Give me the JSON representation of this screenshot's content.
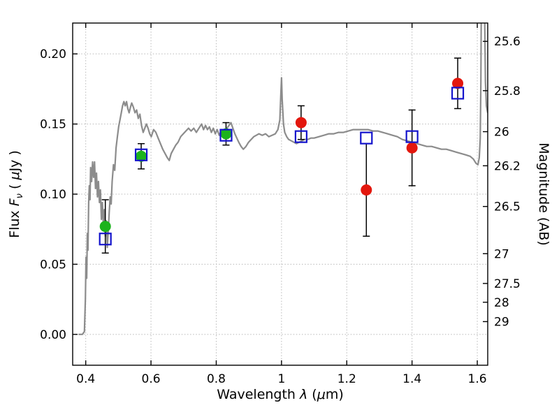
{
  "figure": {
    "background_color": "#ffffff"
  },
  "chart_data": {
    "type": "line+scatter",
    "title": "",
    "xlabel": "Wavelength λ (μm)",
    "ylabel_left": "Flux Fν ( μJy )",
    "ylabel_right": "Magnitude (AB)",
    "xlabel_parts": {
      "pre": "Wavelength  ",
      "sym": "λ",
      "suf": " (",
      "mu": "μ",
      "suf2": "m)"
    },
    "ylabel_left_parts": {
      "pre": "Flux  ",
      "sym": "F",
      "sub": "ν",
      "mid": "  ( ",
      "mu": "μ",
      "suf": "Jy )"
    },
    "xlim": [
      0.36,
      1.632
    ],
    "ylim": [
      -0.022,
      0.222
    ],
    "grid": "dotted",
    "legend": "none",
    "x_ticks": [
      0.4,
      0.6,
      0.8,
      1.0,
      1.2,
      1.4,
      1.6
    ],
    "x_tick_labels": [
      "0.4",
      "0.6",
      "0.8",
      "1",
      "1.2",
      "1.4",
      "1.6"
    ],
    "y_ticks_left": [
      0.0,
      0.05,
      0.1,
      0.15,
      0.2
    ],
    "y_tick_labels_left": [
      "0.00",
      "0.05",
      "0.10",
      "0.15",
      "0.20"
    ],
    "y_ticks_right_mag": [
      25.6,
      25.8,
      26,
      26.2,
      26.5,
      27,
      27.5,
      28,
      29
    ],
    "y_tick_labels_right": [
      "25.6",
      "25.8",
      "26",
      "26.2",
      "26.5",
      "27",
      "27.5",
      "28",
      "29"
    ],
    "ab_zeropoint": 23.9,
    "colors": {
      "spectrum": "#8c8c8c",
      "observed_optical": "#1cb31c",
      "observed_ir": "#e3170d",
      "model_phot": "#1414cc",
      "errorbar": "#000000",
      "axis": "#000000",
      "grid": "#b8b8b8"
    },
    "series": [
      {
        "name": "model-spectrum",
        "type": "line",
        "color_key": "spectrum",
        "points": [
          [
            0.378,
            0.0
          ],
          [
            0.39,
            0.0
          ],
          [
            0.396,
            0.002
          ],
          [
            0.399,
            0.025
          ],
          [
            0.401,
            0.055
          ],
          [
            0.403,
            0.04
          ],
          [
            0.405,
            0.072
          ],
          [
            0.407,
            0.06
          ],
          [
            0.409,
            0.094
          ],
          [
            0.411,
            0.106
          ],
          [
            0.413,
            0.096
          ],
          [
            0.415,
            0.119
          ],
          [
            0.418,
            0.109
          ],
          [
            0.421,
            0.123
          ],
          [
            0.424,
            0.112
          ],
          [
            0.427,
            0.123
          ],
          [
            0.43,
            0.104
          ],
          [
            0.433,
            0.115
          ],
          [
            0.436,
            0.098
          ],
          [
            0.439,
            0.109
          ],
          [
            0.442,
            0.094
          ],
          [
            0.445,
            0.103
          ],
          [
            0.448,
            0.082
          ],
          [
            0.451,
            0.094
          ],
          [
            0.454,
            0.078
          ],
          [
            0.457,
            0.089
          ],
          [
            0.46,
            0.07
          ],
          [
            0.463,
            0.081
          ],
          [
            0.466,
            0.062
          ],
          [
            0.469,
            0.073
          ],
          [
            0.472,
            0.087
          ],
          [
            0.475,
            0.098
          ],
          [
            0.478,
            0.093
          ],
          [
            0.481,
            0.109
          ],
          [
            0.485,
            0.121
          ],
          [
            0.489,
            0.117
          ],
          [
            0.493,
            0.133
          ],
          [
            0.497,
            0.141
          ],
          [
            0.501,
            0.148
          ],
          [
            0.505,
            0.153
          ],
          [
            0.509,
            0.158
          ],
          [
            0.513,
            0.163
          ],
          [
            0.517,
            0.166
          ],
          [
            0.521,
            0.163
          ],
          [
            0.525,
            0.166
          ],
          [
            0.529,
            0.161
          ],
          [
            0.533,
            0.158
          ],
          [
            0.537,
            0.162
          ],
          [
            0.541,
            0.165
          ],
          [
            0.546,
            0.162
          ],
          [
            0.551,
            0.158
          ],
          [
            0.556,
            0.16
          ],
          [
            0.561,
            0.154
          ],
          [
            0.566,
            0.157
          ],
          [
            0.571,
            0.149
          ],
          [
            0.576,
            0.144
          ],
          [
            0.581,
            0.147
          ],
          [
            0.586,
            0.15
          ],
          [
            0.591,
            0.147
          ],
          [
            0.596,
            0.143
          ],
          [
            0.601,
            0.141
          ],
          [
            0.608,
            0.146
          ],
          [
            0.615,
            0.144
          ],
          [
            0.622,
            0.14
          ],
          [
            0.629,
            0.136
          ],
          [
            0.636,
            0.132
          ],
          [
            0.643,
            0.129
          ],
          [
            0.65,
            0.126
          ],
          [
            0.656,
            0.124
          ],
          [
            0.662,
            0.129
          ],
          [
            0.669,
            0.132
          ],
          [
            0.676,
            0.135
          ],
          [
            0.683,
            0.137
          ],
          [
            0.691,
            0.141
          ],
          [
            0.699,
            0.143
          ],
          [
            0.707,
            0.145
          ],
          [
            0.715,
            0.147
          ],
          [
            0.723,
            0.145
          ],
          [
            0.731,
            0.147
          ],
          [
            0.739,
            0.144
          ],
          [
            0.747,
            0.147
          ],
          [
            0.755,
            0.15
          ],
          [
            0.761,
            0.146
          ],
          [
            0.767,
            0.149
          ],
          [
            0.773,
            0.146
          ],
          [
            0.779,
            0.148
          ],
          [
            0.785,
            0.144
          ],
          [
            0.791,
            0.147
          ],
          [
            0.797,
            0.143
          ],
          [
            0.803,
            0.146
          ],
          [
            0.809,
            0.142
          ],
          [
            0.815,
            0.145
          ],
          [
            0.821,
            0.142
          ],
          [
            0.827,
            0.145
          ],
          [
            0.833,
            0.147
          ],
          [
            0.839,
            0.149
          ],
          [
            0.845,
            0.151
          ],
          [
            0.851,
            0.147
          ],
          [
            0.857,
            0.143
          ],
          [
            0.863,
            0.14
          ],
          [
            0.869,
            0.137
          ],
          [
            0.876,
            0.134
          ],
          [
            0.883,
            0.132
          ],
          [
            0.891,
            0.134
          ],
          [
            0.899,
            0.137
          ],
          [
            0.907,
            0.139
          ],
          [
            0.915,
            0.141
          ],
          [
            0.923,
            0.142
          ],
          [
            0.931,
            0.143
          ],
          [
            0.941,
            0.142
          ],
          [
            0.951,
            0.143
          ],
          [
            0.961,
            0.141
          ],
          [
            0.971,
            0.142
          ],
          [
            0.981,
            0.143
          ],
          [
            0.989,
            0.146
          ],
          [
            0.995,
            0.153
          ],
          [
            0.998,
            0.171
          ],
          [
            1.0,
            0.183
          ],
          [
            1.002,
            0.168
          ],
          [
            1.006,
            0.15
          ],
          [
            1.01,
            0.144
          ],
          [
            1.016,
            0.141
          ],
          [
            1.022,
            0.139
          ],
          [
            1.03,
            0.138
          ],
          [
            1.038,
            0.137
          ],
          [
            1.046,
            0.136
          ],
          [
            1.054,
            0.137
          ],
          [
            1.062,
            0.138
          ],
          [
            1.07,
            0.139
          ],
          [
            1.08,
            0.139
          ],
          [
            1.09,
            0.14
          ],
          [
            1.1,
            0.14
          ],
          [
            1.115,
            0.141
          ],
          [
            1.13,
            0.142
          ],
          [
            1.145,
            0.143
          ],
          [
            1.16,
            0.143
          ],
          [
            1.175,
            0.144
          ],
          [
            1.19,
            0.144
          ],
          [
            1.205,
            0.145
          ],
          [
            1.22,
            0.146
          ],
          [
            1.235,
            0.146
          ],
          [
            1.25,
            0.146
          ],
          [
            1.265,
            0.146
          ],
          [
            1.28,
            0.145
          ],
          [
            1.295,
            0.145
          ],
          [
            1.31,
            0.144
          ],
          [
            1.325,
            0.143
          ],
          [
            1.34,
            0.142
          ],
          [
            1.355,
            0.141
          ],
          [
            1.37,
            0.139
          ],
          [
            1.385,
            0.138
          ],
          [
            1.4,
            0.137
          ],
          [
            1.415,
            0.136
          ],
          [
            1.43,
            0.135
          ],
          [
            1.445,
            0.134
          ],
          [
            1.46,
            0.134
          ],
          [
            1.475,
            0.133
          ],
          [
            1.49,
            0.132
          ],
          [
            1.505,
            0.132
          ],
          [
            1.52,
            0.131
          ],
          [
            1.535,
            0.13
          ],
          [
            1.55,
            0.129
          ],
          [
            1.565,
            0.128
          ],
          [
            1.578,
            0.127
          ],
          [
            1.588,
            0.125
          ],
          [
            1.596,
            0.122
          ],
          [
            1.602,
            0.121
          ],
          [
            1.606,
            0.126
          ],
          [
            1.609,
            0.14
          ],
          [
            1.611,
            0.18
          ],
          [
            1.613,
            0.26
          ],
          [
            1.616,
            0.33
          ],
          [
            1.62,
            0.33
          ],
          [
            1.622,
            0.24
          ],
          [
            1.625,
            0.18
          ],
          [
            1.628,
            0.163
          ],
          [
            1.632,
            0.158
          ]
        ]
      },
      {
        "name": "observed-optical-photometry",
        "type": "scatter",
        "marker": "circle",
        "color_key": "observed_optical",
        "x": [
          0.46,
          0.57,
          0.83
        ],
        "y": [
          0.077,
          0.127,
          0.143
        ],
        "yerr": [
          0.019,
          0.009,
          0.008
        ]
      },
      {
        "name": "observed-infrared-photometry",
        "type": "scatter",
        "marker": "circle",
        "color_key": "observed_ir",
        "x": [
          1.06,
          1.26,
          1.4,
          1.54
        ],
        "y": [
          0.151,
          0.103,
          0.133,
          0.179
        ],
        "yerr": [
          0.012,
          0.033,
          0.027,
          0.018
        ]
      },
      {
        "name": "model-photometry",
        "type": "scatter",
        "marker": "open-square",
        "color_key": "model_phot",
        "x": [
          0.46,
          0.57,
          0.83,
          1.06,
          1.26,
          1.4,
          1.54
        ],
        "y": [
          0.068,
          0.128,
          0.142,
          0.141,
          0.14,
          0.141,
          0.172
        ]
      }
    ]
  }
}
